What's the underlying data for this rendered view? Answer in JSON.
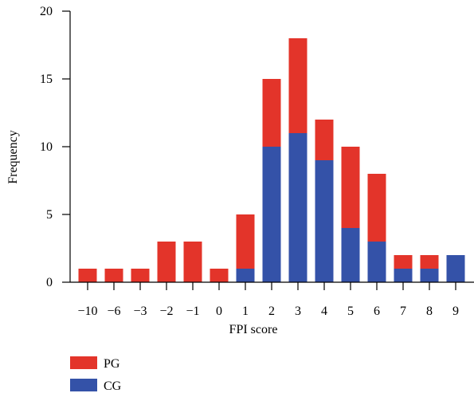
{
  "chart_data": {
    "type": "bar",
    "stacked": true,
    "categories": [
      "−10",
      "−6",
      "−3",
      "−2",
      "−1",
      "0",
      "1",
      "2",
      "3",
      "4",
      "5",
      "6",
      "7",
      "8",
      "9"
    ],
    "series": [
      {
        "name": "CG",
        "color": "#3452a8",
        "values": [
          0,
          0,
          0,
          0,
          0,
          0,
          1,
          10,
          11,
          9,
          4,
          3,
          1,
          1,
          2
        ]
      },
      {
        "name": "PG",
        "color": "#e3342a",
        "values": [
          1,
          1,
          1,
          3,
          3,
          1,
          4,
          5,
          7,
          3,
          6,
          5,
          1,
          1,
          0
        ]
      }
    ],
    "title": "",
    "xlabel": "FPI score",
    "ylabel": "Frequency",
    "ylim": [
      0,
      20
    ],
    "yticks": [
      "0",
      "5",
      "10",
      "15",
      "20"
    ],
    "grid": false,
    "legend": {
      "placement": "bottom-left",
      "entries": [
        {
          "label": "PG",
          "color": "#e3342a"
        },
        {
          "label": "CG",
          "color": "#3452a8"
        }
      ]
    }
  }
}
